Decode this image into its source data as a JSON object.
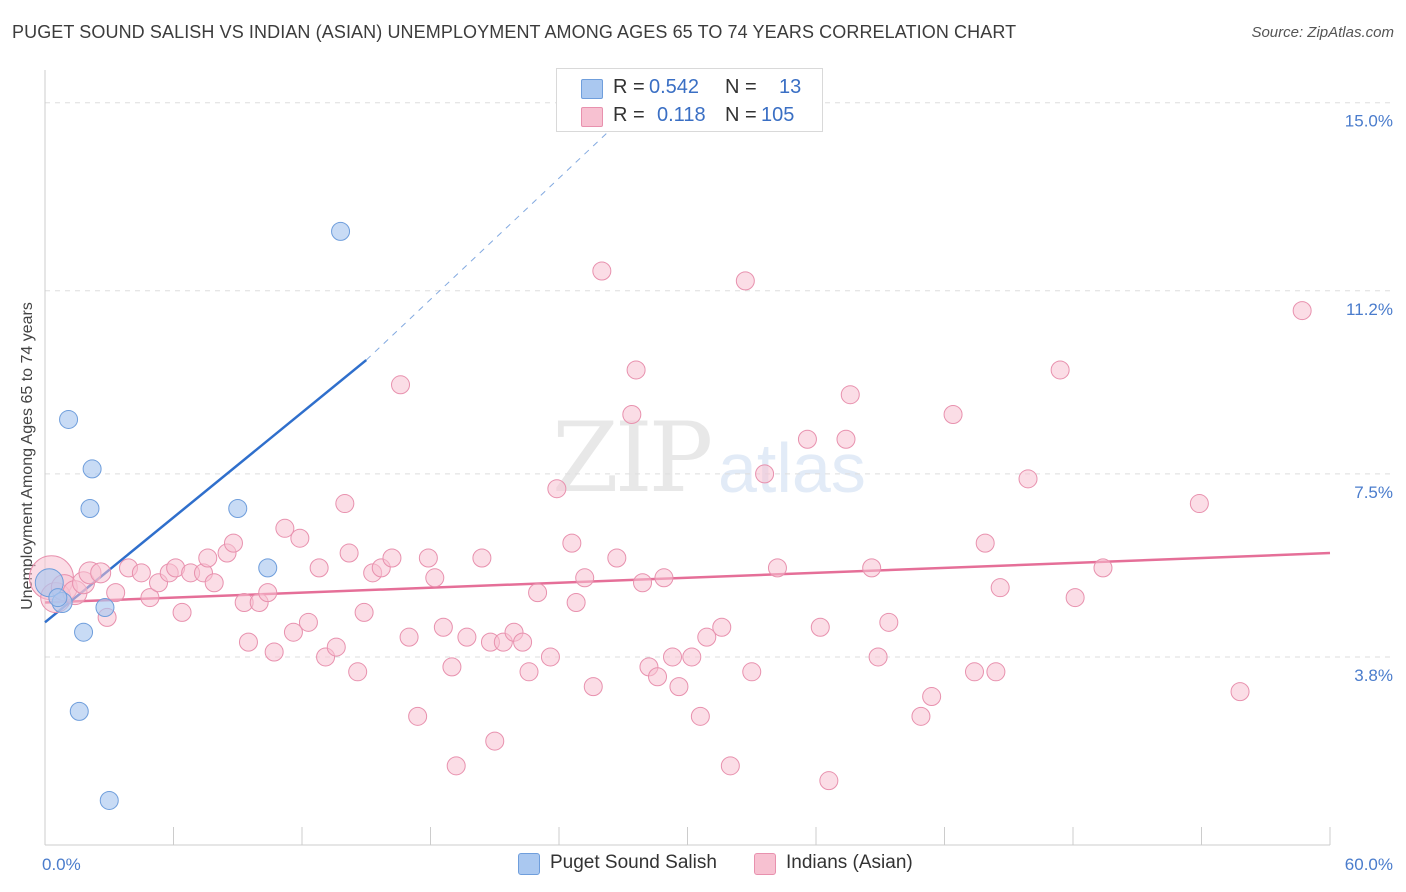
{
  "title": "PUGET SOUND SALISH VS INDIAN (ASIAN) UNEMPLOYMENT AMONG AGES 65 TO 74 YEARS CORRELATION CHART",
  "source": "Source: ZipAtlas.com",
  "watermark": {
    "zip": "ZIP",
    "atlas": "atlas"
  },
  "legend_top": {
    "rows": [
      {
        "r_label": "R =",
        "r_value": "0.542",
        "n_label": "N =",
        "n_value": "13"
      },
      {
        "r_label": "R =",
        "r_value": "0.118",
        "n_label": "N =",
        "n_value": "105"
      }
    ]
  },
  "legend_bottom": {
    "series1": "Puget Sound Salish",
    "series2": "Indians (Asian)"
  },
  "colors": {
    "series1_fill": "#aac8f0",
    "series1_stroke": "#6f9edc",
    "series1_line": "#2f6fcc",
    "series2_fill": "#f7c1d1",
    "series2_stroke": "#e891ae",
    "series2_line": "#e56f98",
    "grid": "#dddddd",
    "tick_text": "#4a7ccc"
  },
  "chart_data": {
    "type": "scatter",
    "title": "PUGET SOUND SALISH VS INDIAN (ASIAN) UNEMPLOYMENT AMONG AGES 65 TO 74 YEARS CORRELATION CHART",
    "xlabel": "",
    "ylabel": "Unemployment Among Ages 65 to 74 years",
    "xlim": [
      0,
      60
    ],
    "ylim": [
      0,
      15.5
    ],
    "x_tick_labels": {
      "left": "0.0%",
      "right": "60.0%"
    },
    "y_ticks": [
      3.8,
      7.5,
      11.2,
      15.0
    ],
    "y_tick_labels": [
      "3.8%",
      "7.5%",
      "11.2%",
      "15.0%"
    ],
    "series": [
      {
        "name": "Puget Sound Salish",
        "r": 0.542,
        "n": 13,
        "trend": {
          "x0": 0,
          "y0": 4.5,
          "x1": 15,
          "y1": 9.8,
          "dash_to_x": 27,
          "dash_to_y": 14.7
        },
        "points": [
          [
            0.2,
            5.3,
            14
          ],
          [
            0.8,
            4.9,
            10
          ],
          [
            1.1,
            8.6,
            9
          ],
          [
            1.8,
            4.3,
            9
          ],
          [
            2.2,
            7.6,
            9
          ],
          [
            2.1,
            6.8,
            9
          ],
          [
            1.6,
            2.7,
            9
          ],
          [
            2.8,
            4.8,
            9
          ],
          [
            3.0,
            0.9,
            9
          ],
          [
            9.0,
            6.8,
            9
          ],
          [
            10.4,
            5.6,
            9
          ],
          [
            13.8,
            12.4,
            9
          ],
          [
            0.6,
            5.0,
            9
          ]
        ]
      },
      {
        "name": "Indians (Asian)",
        "r": 0.118,
        "n": 105,
        "trend": {
          "x0": 0,
          "y0": 4.9,
          "x1": 60,
          "y1": 5.9
        },
        "points": [
          [
            0.3,
            5.4,
            22
          ],
          [
            0.5,
            5.0,
            15
          ],
          [
            0.9,
            5.2,
            13
          ],
          [
            1.4,
            5.1,
            12
          ],
          [
            1.8,
            5.3,
            11
          ],
          [
            2.1,
            5.5,
            11
          ],
          [
            2.6,
            5.5,
            10
          ],
          [
            2.9,
            4.6,
            9
          ],
          [
            3.3,
            5.1,
            9
          ],
          [
            3.9,
            5.6,
            9
          ],
          [
            4.5,
            5.5,
            9
          ],
          [
            4.9,
            5.0,
            9
          ],
          [
            5.3,
            5.3,
            9
          ],
          [
            5.8,
            5.5,
            9
          ],
          [
            6.1,
            5.6,
            9
          ],
          [
            6.4,
            4.7,
            9
          ],
          [
            6.8,
            5.5,
            9
          ],
          [
            7.4,
            5.5,
            9
          ],
          [
            7.6,
            5.8,
            9
          ],
          [
            7.9,
            5.3,
            9
          ],
          [
            8.5,
            5.9,
            9
          ],
          [
            8.8,
            6.1,
            9
          ],
          [
            9.3,
            4.9,
            9
          ],
          [
            9.5,
            4.1,
            9
          ],
          [
            10.0,
            4.9,
            9
          ],
          [
            10.4,
            5.1,
            9
          ],
          [
            10.7,
            3.9,
            9
          ],
          [
            11.2,
            6.4,
            9
          ],
          [
            11.6,
            4.3,
            9
          ],
          [
            11.9,
            6.2,
            9
          ],
          [
            12.3,
            4.5,
            9
          ],
          [
            12.8,
            5.6,
            9
          ],
          [
            13.1,
            3.8,
            9
          ],
          [
            13.6,
            4.0,
            9
          ],
          [
            14.0,
            6.9,
            9
          ],
          [
            14.2,
            5.9,
            9
          ],
          [
            14.6,
            3.5,
            9
          ],
          [
            14.9,
            4.7,
            9
          ],
          [
            15.3,
            5.5,
            9
          ],
          [
            15.7,
            5.6,
            9
          ],
          [
            16.2,
            5.8,
            9
          ],
          [
            16.6,
            9.3,
            9
          ],
          [
            17.0,
            4.2,
            9
          ],
          [
            17.4,
            2.6,
            9
          ],
          [
            17.9,
            5.8,
            9
          ],
          [
            18.2,
            5.4,
            9
          ],
          [
            18.6,
            4.4,
            9
          ],
          [
            19.0,
            3.6,
            9
          ],
          [
            19.2,
            1.6,
            9
          ],
          [
            19.7,
            4.2,
            9
          ],
          [
            20.4,
            5.8,
            9
          ],
          [
            20.8,
            4.1,
            9
          ],
          [
            21.0,
            2.1,
            9
          ],
          [
            21.4,
            4.1,
            9
          ],
          [
            21.9,
            4.3,
            9
          ],
          [
            22.3,
            4.1,
            9
          ],
          [
            22.6,
            3.5,
            9
          ],
          [
            23.0,
            5.1,
            9
          ],
          [
            23.6,
            3.8,
            9
          ],
          [
            23.9,
            7.2,
            9
          ],
          [
            24.6,
            6.1,
            9
          ],
          [
            24.8,
            4.9,
            9
          ],
          [
            25.2,
            5.4,
            9
          ],
          [
            25.6,
            3.2,
            9
          ],
          [
            26.0,
            11.6,
            9
          ],
          [
            26.7,
            5.8,
            9
          ],
          [
            27.4,
            8.7,
            9
          ],
          [
            27.6,
            9.6,
            9
          ],
          [
            27.9,
            5.3,
            9
          ],
          [
            28.2,
            3.6,
            9
          ],
          [
            28.6,
            3.4,
            9
          ],
          [
            28.9,
            5.4,
            9
          ],
          [
            29.3,
            3.8,
            9
          ],
          [
            29.6,
            3.2,
            9
          ],
          [
            30.2,
            3.8,
            9
          ],
          [
            30.6,
            2.6,
            9
          ],
          [
            30.9,
            4.2,
            9
          ],
          [
            31.6,
            4.4,
            9
          ],
          [
            32.0,
            1.6,
            9
          ],
          [
            32.7,
            11.4,
            9
          ],
          [
            33.0,
            3.5,
            9
          ],
          [
            33.6,
            7.5,
            9
          ],
          [
            34.2,
            5.6,
            9
          ],
          [
            35.6,
            8.2,
            9
          ],
          [
            36.2,
            4.4,
            9
          ],
          [
            36.6,
            1.3,
            9
          ],
          [
            37.4,
            8.2,
            9
          ],
          [
            37.6,
            9.1,
            9
          ],
          [
            38.6,
            5.6,
            9
          ],
          [
            38.9,
            3.8,
            9
          ],
          [
            39.4,
            4.5,
            9
          ],
          [
            40.9,
            2.6,
            9
          ],
          [
            41.4,
            3.0,
            9
          ],
          [
            42.4,
            8.7,
            9
          ],
          [
            43.4,
            3.5,
            9
          ],
          [
            43.9,
            6.1,
            9
          ],
          [
            44.4,
            3.5,
            9
          ],
          [
            44.6,
            5.2,
            9
          ],
          [
            45.9,
            7.4,
            9
          ],
          [
            47.4,
            9.6,
            9
          ],
          [
            48.1,
            5.0,
            9
          ],
          [
            49.4,
            5.6,
            9
          ],
          [
            53.9,
            6.9,
            9
          ],
          [
            55.8,
            3.1,
            9
          ],
          [
            58.7,
            10.8,
            9
          ]
        ]
      }
    ]
  }
}
